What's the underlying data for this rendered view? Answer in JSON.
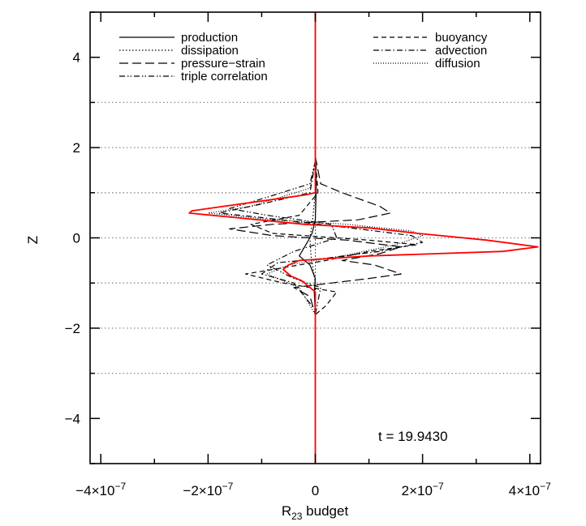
{
  "chart_data": {
    "type": "line",
    "xlabel_main": "R",
    "xlabel_sub": "23",
    "xlabel_rest": " budget",
    "ylabel": "Z",
    "xlim": [
      -4.2e-07,
      4.2e-07
    ],
    "ylim": [
      -5,
      5
    ],
    "x_ticks": [
      {
        "value": -4e-07,
        "mantissa": "−4×10",
        "exponent": "−7"
      },
      {
        "value": -2e-07,
        "mantissa": "−2×10",
        "exponent": "−7"
      },
      {
        "value": 0,
        "mantissa": "0",
        "exponent": ""
      },
      {
        "value": 2e-07,
        "mantissa": "2×10",
        "exponent": "−7"
      },
      {
        "value": 4e-07,
        "mantissa": "4×10",
        "exponent": "−7"
      }
    ],
    "y_ticks": [
      {
        "value": -4,
        "label": "−4"
      },
      {
        "value": -2,
        "label": "−2"
      },
      {
        "value": 0,
        "label": "0"
      },
      {
        "value": 2,
        "label": "2"
      },
      {
        "value": 4,
        "label": "4"
      }
    ],
    "reference_lines_z": [
      3,
      2,
      1,
      0,
      -1,
      -2,
      -3
    ],
    "annotation": "t = 19.9430",
    "legend_left": [
      {
        "name": "production",
        "dash": "solid"
      },
      {
        "name": "dissipation",
        "dash": "dotted"
      },
      {
        "name": "pressure−strain",
        "dash": "longdash"
      },
      {
        "name": "triple correlation",
        "dash": "dashdotdot"
      }
    ],
    "legend_right": [
      {
        "name": "buoyancy",
        "dash": "dashed"
      },
      {
        "name": "advection",
        "dash": "dashdot"
      },
      {
        "name": "diffusion",
        "dash": "finedotted"
      }
    ],
    "series": [
      {
        "name": "production",
        "dash": "solid",
        "color": "#000000",
        "points": [
          [
            0,
            1.8
          ],
          [
            2e-09,
            1.2
          ],
          [
            0,
            0.4
          ],
          [
            -6e-09,
            0.1
          ],
          [
            -1.5e-08,
            -0.1
          ],
          [
            -2.5e-08,
            -0.3
          ],
          [
            -3e-08,
            -0.4
          ],
          [
            -1e-08,
            -0.6
          ],
          [
            0,
            -0.9
          ],
          [
            -2e-09,
            -1.2
          ],
          [
            0,
            -1.7
          ]
        ]
      },
      {
        "name": "dissipation",
        "dash": "dotted",
        "color": "#000000",
        "points": [
          [
            0,
            1.8
          ],
          [
            0,
            1.0
          ],
          [
            -5e-09,
            0.4
          ],
          [
            -1e-08,
            0.0
          ],
          [
            -8e-09,
            -0.4
          ],
          [
            0,
            -1.0
          ],
          [
            0,
            -1.7
          ]
        ]
      },
      {
        "name": "pressure−strain",
        "dash": "longdash",
        "color": "#000000",
        "points": [
          [
            0,
            1.8
          ],
          [
            1e-08,
            1.2
          ],
          [
            5e-08,
            1.0
          ],
          [
            1.2e-07,
            0.7
          ],
          [
            1.4e-07,
            0.55
          ],
          [
            8e-08,
            0.4
          ],
          [
            -8e-08,
            0.3
          ],
          [
            -1.6e-07,
            0.2
          ],
          [
            -8e-08,
            0.05
          ],
          [
            6e-08,
            -0.05
          ],
          [
            1.6e-07,
            -0.2
          ],
          [
            1.2e-07,
            -0.35
          ],
          [
            5e-08,
            -0.5
          ],
          [
            1.1e-07,
            -0.6
          ],
          [
            1.6e-07,
            -0.8
          ],
          [
            1e-07,
            -0.9
          ],
          [
            3e-08,
            -1.0
          ],
          [
            -4e-08,
            -1.1
          ],
          [
            -1e-08,
            -1.3
          ],
          [
            0,
            -1.7
          ]
        ]
      },
      {
        "name": "triple correlation",
        "dash": "dashdotdot",
        "color": "#000000",
        "points": [
          [
            0,
            1.7
          ],
          [
            -1e-08,
            1.2
          ],
          [
            -9e-08,
            0.9
          ],
          [
            -1.6e-07,
            0.65
          ],
          [
            -9e-08,
            0.5
          ],
          [
            3e-08,
            0.3
          ],
          [
            4e-08,
            0.0
          ],
          [
            -4e-08,
            -0.3
          ],
          [
            -9e-08,
            -0.6
          ],
          [
            -4e-08,
            -0.9
          ],
          [
            1e-08,
            -1.1
          ],
          [
            0,
            -1.7
          ]
        ]
      },
      {
        "name": "buoyancy",
        "dash": "dashed",
        "color": "#000000",
        "points": [
          [
            0,
            1.8
          ],
          [
            5e-09,
            1.0
          ],
          [
            -3e-08,
            0.5
          ],
          [
            -1.2e-07,
            0.3
          ],
          [
            -8e-08,
            0.1
          ],
          [
            1e-07,
            -0.05
          ],
          [
            1.9e-07,
            -0.15
          ],
          [
            1e-07,
            -0.3
          ],
          [
            2e-08,
            -0.5
          ],
          [
            -3e-08,
            -0.6
          ],
          [
            -1.3e-07,
            -0.8
          ],
          [
            -6e-08,
            -1.0
          ],
          [
            4e-08,
            -1.2
          ],
          [
            2e-08,
            -1.5
          ],
          [
            0,
            -1.7
          ]
        ]
      },
      {
        "name": "advection",
        "dash": "dashdot",
        "color": "#000000",
        "points": [
          [
            0,
            1.7
          ],
          [
            -1e-08,
            1.0
          ],
          [
            -1e-07,
            0.75
          ],
          [
            -1.8e-07,
            0.55
          ],
          [
            -1e-07,
            0.45
          ],
          [
            8e-08,
            0.2
          ],
          [
            1.8e-07,
            0.05
          ],
          [
            2e-07,
            -0.1
          ],
          [
            1.2e-07,
            -0.3
          ],
          [
            2e-08,
            -0.45
          ],
          [
            -7e-08,
            -0.55
          ],
          [
            -1e-07,
            -0.8
          ],
          [
            -4e-08,
            -1.0
          ],
          [
            0,
            -1.6
          ]
        ]
      },
      {
        "name": "diffusion",
        "dash": "finedotted",
        "color": "#000000",
        "points": [
          [
            0,
            1.7
          ],
          [
            -1e-08,
            1.1
          ],
          [
            -1.2e-07,
            0.7
          ],
          [
            -2e-07,
            0.55
          ],
          [
            -8e-08,
            0.4
          ],
          [
            6e-08,
            0.3
          ],
          [
            1.8e-07,
            0.15
          ],
          [
            2e-07,
            0.05
          ],
          [
            1.5e-07,
            -0.15
          ],
          [
            5e-08,
            -0.4
          ],
          [
            -5e-08,
            -0.6
          ],
          [
            -9e-08,
            -0.8
          ],
          [
            -3e-08,
            -1.1
          ],
          [
            0,
            -1.7
          ]
        ]
      },
      {
        "name": "total",
        "dash": "solid",
        "color": "#ff0000",
        "points": [
          [
            0,
            5
          ],
          [
            0,
            1.5
          ],
          [
            0,
            1.0
          ],
          [
            -2e-08,
            0.95
          ],
          [
            -8e-08,
            0.85
          ],
          [
            -2.3e-07,
            0.6
          ],
          [
            -2.35e-07,
            0.55
          ],
          [
            -1.5e-07,
            0.45
          ],
          [
            -2e-08,
            0.3
          ],
          [
            1e-07,
            0.22
          ],
          [
            1.9e-07,
            0.1
          ],
          [
            3.2e-07,
            -0.05
          ],
          [
            4.15e-07,
            -0.2
          ],
          [
            3.5e-07,
            -0.3
          ],
          [
            1e-07,
            -0.4
          ],
          [
            -3e-08,
            -0.5
          ],
          [
            -5e-08,
            -0.6
          ],
          [
            -6e-08,
            -0.7
          ],
          [
            -4.5e-08,
            -0.85
          ],
          [
            -2.5e-08,
            -0.95
          ],
          [
            0,
            -1.2
          ],
          [
            0,
            -5
          ]
        ]
      }
    ]
  }
}
